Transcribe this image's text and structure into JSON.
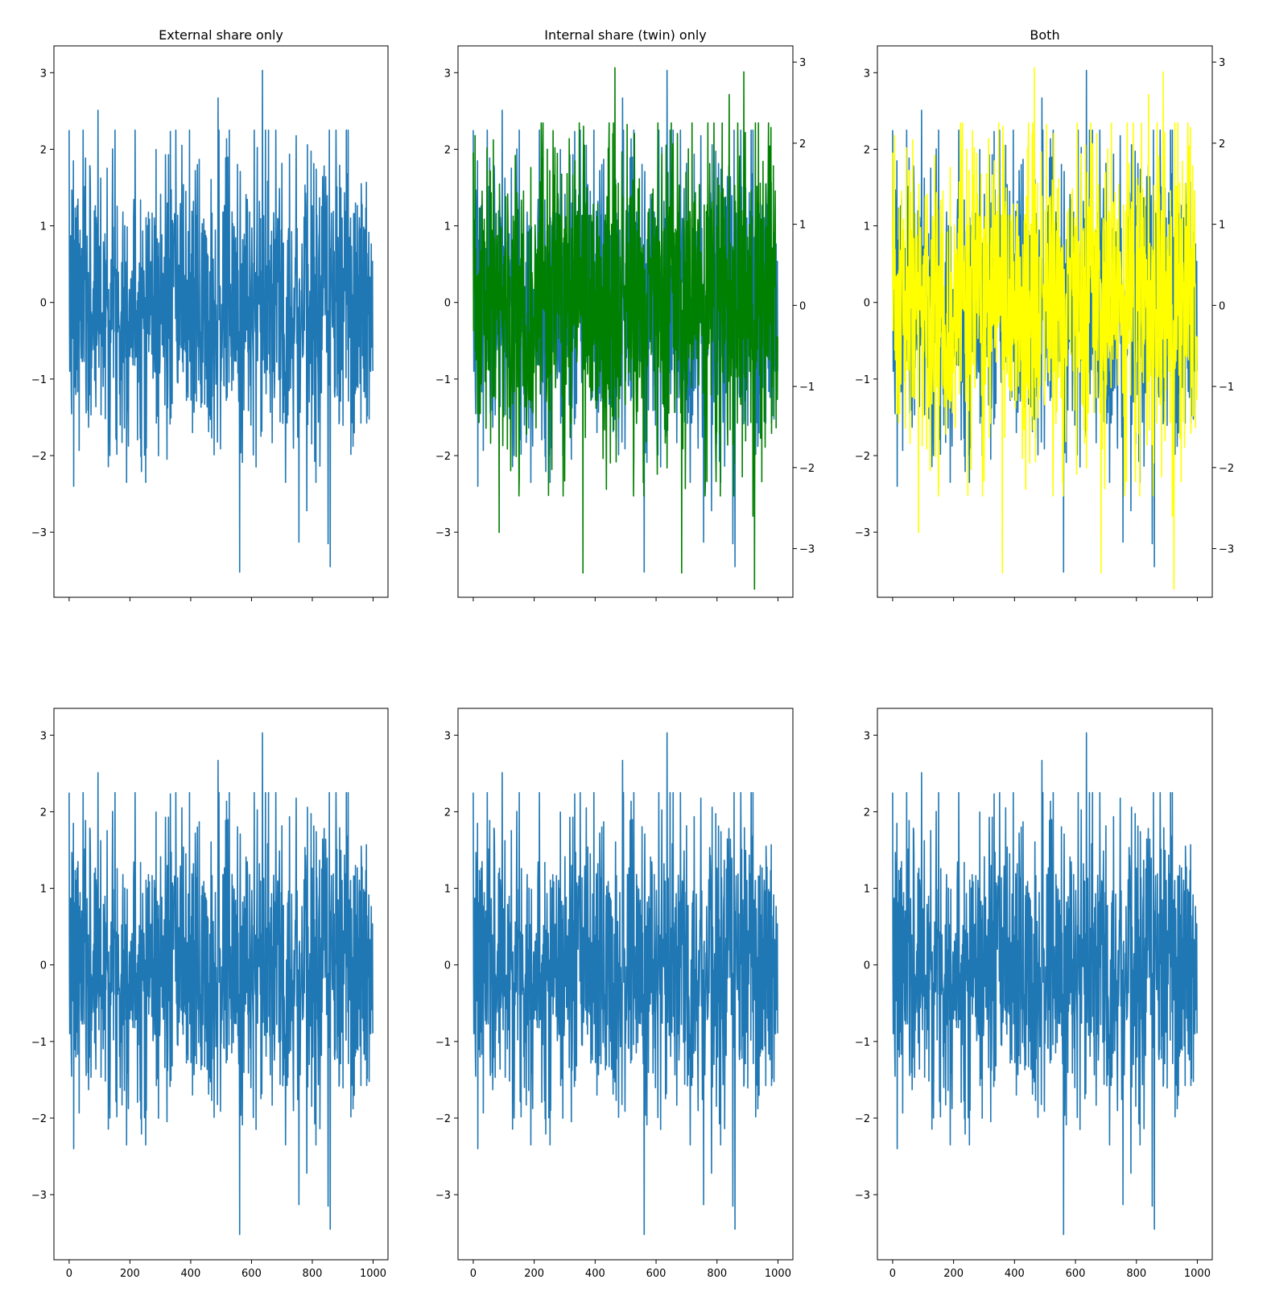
{
  "colors": {
    "blue": "#1f77b4",
    "green": "#008000",
    "yellow": "#ffff00"
  },
  "chart_data": [
    {
      "type": "line",
      "title": "External share only",
      "x_range": [
        0,
        999
      ],
      "xlim": [
        -50,
        1049
      ],
      "ylim": [
        -3.85,
        3.35
      ],
      "xticks": [
        0,
        200,
        400,
        600,
        800,
        1000
      ],
      "xtick_labels_shown": false,
      "yticks": [
        -3,
        -2,
        -1,
        0,
        1,
        2,
        3
      ],
      "ytick_labels": [
        "−3",
        "−2",
        "−1",
        "0",
        "1",
        "2",
        "3"
      ],
      "series": [
        {
          "color": "blue",
          "n_points": 1000,
          "seed": 7,
          "y_peaks": [
            [
              636,
              3.03
            ],
            [
              561,
              -3.52
            ],
            [
              859,
              -3.45
            ],
            [
              756,
              -3.13
            ],
            [
              852,
              -3.15
            ],
            [
              782,
              -2.72
            ],
            [
              490,
              2.67
            ],
            [
              95,
              2.51
            ],
            [
              15,
              -2.4
            ]
          ]
        }
      ]
    },
    {
      "type": "line",
      "title": "Internal share (twin) only",
      "x_range": [
        0,
        999
      ],
      "xlim": [
        -50,
        1049
      ],
      "ylim": [
        -3.85,
        3.35
      ],
      "xticks": [
        0,
        200,
        400,
        600,
        800,
        1000
      ],
      "xtick_labels_shown": false,
      "yticks": [
        -3,
        -2,
        -1,
        0,
        1,
        2,
        3
      ],
      "ytick_labels": [
        "−3",
        "−2",
        "−1",
        "0",
        "1",
        "2",
        "3"
      ],
      "secondary_y": {
        "ylim": [
          -3.6,
          3.2
        ],
        "yticks": [
          -3,
          -2,
          -1,
          0,
          1,
          2,
          3
        ],
        "ytick_labels": [
          "−3",
          "−2",
          "−1",
          "0",
          "1",
          "2",
          "3"
        ]
      },
      "series": [
        {
          "color": "blue",
          "axis": "left",
          "n_points": 1000,
          "seed": 7,
          "y_peaks": [
            [
              636,
              3.03
            ],
            [
              561,
              -3.52
            ],
            [
              859,
              -3.45
            ],
            [
              756,
              -3.13
            ],
            [
              852,
              -3.15
            ],
            [
              782,
              -2.72
            ],
            [
              490,
              2.67
            ],
            [
              95,
              2.51
            ],
            [
              15,
              -2.4
            ]
          ]
        },
        {
          "color": "green",
          "axis": "right",
          "n_points": 1000,
          "seed": 23,
          "y_peaks": [
            [
              923,
              -3.5
            ],
            [
              360,
              -3.3
            ],
            [
              684,
              -3.3
            ],
            [
              465,
              2.93
            ],
            [
              888,
              2.88
            ],
            [
              85,
              -2.8
            ],
            [
              918,
              -2.6
            ],
            [
              840,
              2.6
            ]
          ]
        }
      ]
    },
    {
      "type": "line",
      "title": "Both",
      "x_range": [
        0,
        999
      ],
      "xlim": [
        -50,
        1049
      ],
      "ylim": [
        -3.85,
        3.35
      ],
      "xticks": [
        0,
        200,
        400,
        600,
        800,
        1000
      ],
      "xtick_labels_shown": false,
      "yticks": [
        -3,
        -2,
        -1,
        0,
        1,
        2,
        3
      ],
      "ytick_labels": [
        "−3",
        "−2",
        "−1",
        "0",
        "1",
        "2",
        "3"
      ],
      "secondary_y": {
        "ylim": [
          -3.6,
          3.2
        ],
        "yticks": [
          -3,
          -2,
          -1,
          0,
          1,
          2,
          3
        ],
        "ytick_labels": [
          "−3",
          "−2",
          "−1",
          "0",
          "1",
          "2",
          "3"
        ]
      },
      "series": [
        {
          "color": "blue",
          "axis": "left",
          "n_points": 1000,
          "seed": 7,
          "y_peaks": [
            [
              636,
              3.03
            ],
            [
              561,
              -3.52
            ],
            [
              859,
              -3.45
            ],
            [
              756,
              -3.13
            ],
            [
              852,
              -3.15
            ],
            [
              782,
              -2.72
            ],
            [
              490,
              2.67
            ],
            [
              95,
              2.51
            ],
            [
              15,
              -2.4
            ]
          ]
        },
        {
          "color": "yellow",
          "axis": "right",
          "n_points": 1000,
          "seed": 23,
          "y_peaks": [
            [
              923,
              -3.5
            ],
            [
              360,
              -3.3
            ],
            [
              684,
              -3.3
            ],
            [
              465,
              2.93
            ],
            [
              888,
              2.88
            ],
            [
              85,
              -2.8
            ],
            [
              918,
              -2.6
            ],
            [
              840,
              2.6
            ]
          ]
        }
      ]
    },
    {
      "type": "line",
      "title": "",
      "x_range": [
        0,
        999
      ],
      "xlim": [
        -50,
        1049
      ],
      "ylim": [
        -3.85,
        3.35
      ],
      "xticks": [
        0,
        200,
        400,
        600,
        800,
        1000
      ],
      "xtick_labels": [
        "0",
        "200",
        "400",
        "600",
        "800",
        "1000"
      ],
      "xtick_labels_shown": true,
      "yticks": [
        -3,
        -2,
        -1,
        0,
        1,
        2,
        3
      ],
      "ytick_labels": [
        "−3",
        "−2",
        "−1",
        "0",
        "1",
        "2",
        "3"
      ],
      "series": [
        {
          "color": "blue",
          "n_points": 1000,
          "seed": 7,
          "y_peaks": [
            [
              636,
              3.03
            ],
            [
              561,
              -3.52
            ],
            [
              859,
              -3.45
            ],
            [
              756,
              -3.13
            ],
            [
              852,
              -3.15
            ],
            [
              782,
              -2.72
            ],
            [
              490,
              2.67
            ],
            [
              95,
              2.51
            ],
            [
              15,
              -2.4
            ]
          ]
        }
      ]
    },
    {
      "type": "line",
      "title": "",
      "x_range": [
        0,
        999
      ],
      "xlim": [
        -50,
        1049
      ],
      "ylim": [
        -3.85,
        3.35
      ],
      "xticks": [
        0,
        200,
        400,
        600,
        800,
        1000
      ],
      "xtick_labels": [
        "0",
        "200",
        "400",
        "600",
        "800",
        "1000"
      ],
      "xtick_labels_shown": true,
      "yticks": [
        -3,
        -2,
        -1,
        0,
        1,
        2,
        3
      ],
      "ytick_labels": [
        "−3",
        "−2",
        "−1",
        "0",
        "1",
        "2",
        "3"
      ],
      "series": [
        {
          "color": "blue",
          "n_points": 1000,
          "seed": 7,
          "y_peaks": [
            [
              636,
              3.03
            ],
            [
              561,
              -3.52
            ],
            [
              859,
              -3.45
            ],
            [
              756,
              -3.13
            ],
            [
              852,
              -3.15
            ],
            [
              782,
              -2.72
            ],
            [
              490,
              2.67
            ],
            [
              95,
              2.51
            ],
            [
              15,
              -2.4
            ]
          ]
        }
      ]
    },
    {
      "type": "line",
      "title": "",
      "x_range": [
        0,
        999
      ],
      "xlim": [
        -50,
        1049
      ],
      "ylim": [
        -3.85,
        3.35
      ],
      "xticks": [
        0,
        200,
        400,
        600,
        800,
        1000
      ],
      "xtick_labels": [
        "0",
        "200",
        "400",
        "600",
        "800",
        "1000"
      ],
      "xtick_labels_shown": true,
      "yticks": [
        -3,
        -2,
        -1,
        0,
        1,
        2,
        3
      ],
      "ytick_labels": [
        "−3",
        "−2",
        "−1",
        "0",
        "1",
        "2",
        "3"
      ],
      "series": [
        {
          "color": "blue",
          "n_points": 1000,
          "seed": 7,
          "y_peaks": [
            [
              636,
              3.03
            ],
            [
              561,
              -3.52
            ],
            [
              859,
              -3.45
            ],
            [
              756,
              -3.13
            ],
            [
              852,
              -3.15
            ],
            [
              782,
              -2.72
            ],
            [
              490,
              2.67
            ],
            [
              95,
              2.51
            ],
            [
              15,
              -2.4
            ]
          ]
        }
      ]
    }
  ]
}
